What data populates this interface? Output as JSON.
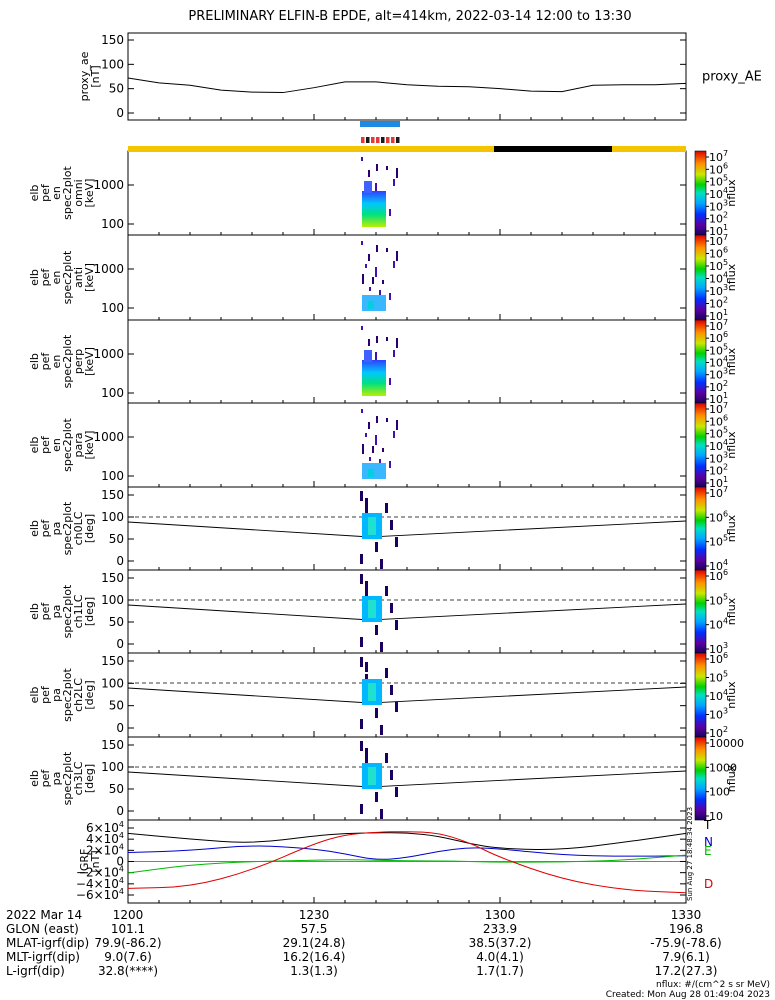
{
  "title": "PRELIMINARY ELFIN-B EPDE, alt=414km, 2022-03-14 12:00 to 13:30",
  "chart_data": [
    {
      "type": "line",
      "ylabel": [
        "proxy_ae",
        "[nT]"
      ],
      "legend": "proxy_AE",
      "ylim": [
        -10,
        160
      ],
      "y_ticks": [
        "150",
        "100",
        "50",
        "0"
      ],
      "x": [
        0,
        5,
        10,
        15,
        20,
        25,
        30,
        35,
        40,
        45,
        50,
        55,
        60,
        65,
        70,
        75,
        80,
        85,
        90
      ],
      "values": [
        72,
        62,
        57,
        47,
        43,
        42,
        52,
        64,
        64,
        58,
        55,
        54,
        50,
        45,
        44,
        57,
        58,
        58,
        61
      ]
    },
    {
      "type": "heatmap",
      "ylabel": [
        "elb",
        "pef",
        "en",
        "spec2plot",
        "omni",
        "[keV]"
      ],
      "y_ticks": [
        "1000",
        "100"
      ],
      "colorbar_ticks": [
        "10^7",
        "10^6",
        "10^5",
        "10^4",
        "10^3",
        "10^2",
        "10^1"
      ],
      "colorbar_label": "nflux"
    },
    {
      "type": "heatmap",
      "ylabel": [
        "elb",
        "pef",
        "en",
        "spec2plot",
        "anti",
        "[keV]"
      ],
      "y_ticks": [
        "1000",
        "100"
      ],
      "colorbar_ticks": [
        "10^7",
        "10^6",
        "10^5",
        "10^4",
        "10^3",
        "10^2",
        "10^1"
      ],
      "colorbar_label": "nflux"
    },
    {
      "type": "heatmap",
      "ylabel": [
        "elb",
        "pef",
        "en",
        "spec2plot",
        "perp",
        "[keV]"
      ],
      "y_ticks": [
        "1000",
        "100"
      ],
      "colorbar_ticks": [
        "10^7",
        "10^6",
        "10^5",
        "10^4",
        "10^3",
        "10^2",
        "10^1"
      ],
      "colorbar_label": "nflux"
    },
    {
      "type": "heatmap",
      "ylabel": [
        "elb",
        "pef",
        "en",
        "spec2plot",
        "para",
        "[keV]"
      ],
      "y_ticks": [
        "1000",
        "100"
      ],
      "colorbar_ticks": [
        "10^7",
        "10^6",
        "10^5",
        "10^4",
        "10^3",
        "10^2",
        "10^1"
      ],
      "colorbar_label": "nflux"
    },
    {
      "type": "heatmap",
      "ylabel": [
        "elb",
        "pef",
        "pa",
        "spec2plot",
        "ch0LC",
        "[deg]"
      ],
      "y_ticks": [
        "150",
        "100",
        "50",
        "0"
      ],
      "colorbar_ticks": [
        "10^7",
        "10^6",
        "10^5",
        "10^4"
      ],
      "colorbar_label": "nflux"
    },
    {
      "type": "heatmap",
      "ylabel": [
        "elb",
        "pef",
        "pa",
        "spec2plot",
        "ch1LC",
        "[deg]"
      ],
      "y_ticks": [
        "150",
        "100",
        "50",
        "0"
      ],
      "colorbar_ticks": [
        "10^6",
        "10^5",
        "10^4",
        "10^3"
      ],
      "colorbar_label": "nflux"
    },
    {
      "type": "heatmap",
      "ylabel": [
        "elb",
        "pef",
        "pa",
        "spec2plot",
        "ch2LC",
        "[deg]"
      ],
      "y_ticks": [
        "150",
        "100",
        "50",
        "0"
      ],
      "colorbar_ticks": [
        "10^6",
        "10^5",
        "10^4",
        "10^3",
        "10^2"
      ],
      "colorbar_label": "nflux"
    },
    {
      "type": "heatmap",
      "ylabel": [
        "elb",
        "pef",
        "pa",
        "spec2plot",
        "ch3LC",
        "[deg]"
      ],
      "y_ticks": [
        "150",
        "100",
        "50",
        "0"
      ],
      "colorbar_ticks": [
        "10000",
        "1000",
        "100",
        "10"
      ],
      "colorbar_label": "nflux"
    },
    {
      "type": "line",
      "ylabel": [
        "IGRF",
        "[nT]"
      ],
      "ylim": [
        -65000,
        65000
      ],
      "y_ticks": [
        "6×10^4",
        "4×10^4",
        "2×10^4",
        "0",
        "−2×10^4",
        "−4×10^4",
        "−6×10^4"
      ],
      "x": [
        0,
        10,
        20,
        30,
        35,
        40,
        45,
        50,
        55,
        60,
        70,
        80,
        90
      ],
      "series": [
        {
          "name": "T",
          "color": "#000000",
          "values": [
            44000,
            35000,
            28000,
            40000,
            44000,
            45000,
            45000,
            40000,
            28000,
            20000,
            18000,
            30000,
            44000
          ]
        },
        {
          "name": "N",
          "color": "#0000cc",
          "values": [
            14000,
            17000,
            26000,
            20000,
            12000,
            2000,
            6000,
            16000,
            22000,
            20000,
            10000,
            8000,
            9000
          ]
        },
        {
          "name": "E",
          "color": "#00bb00",
          "values": [
            -18000,
            -5000,
            0,
            2000,
            3000,
            2000,
            1000,
            1000,
            0,
            -1000,
            -1000,
            2000,
            10000
          ]
        },
        {
          "name": "D",
          "color": "#dd0000",
          "values": [
            -42000,
            -40000,
            -14000,
            28000,
            42000,
            46000,
            47000,
            45000,
            30000,
            6000,
            -28000,
            -45000,
            -49000
          ]
        }
      ],
      "side_text": "Sun Aug 27 18:48:34 2023"
    }
  ],
  "x_axis": {
    "row_labels": [
      "2022 Mar 14",
      "GLON (east)",
      "MLAT-igrf(dip)",
      "MLT-igrf(dip)",
      "L-igrf(dip)"
    ],
    "columns": [
      {
        "values": [
          "1200",
          "101.1",
          "79.9(-86.2)",
          "9.0(7.6)",
          "32.8(****)"
        ]
      },
      {
        "values": [
          "1230",
          "57.5",
          "29.1(24.8)",
          "16.2(16.4)",
          "1.3(1.3)"
        ]
      },
      {
        "values": [
          "1300",
          "233.9",
          "38.5(37.2)",
          "4.0(4.1)",
          "1.7(1.7)"
        ]
      },
      {
        "values": [
          "1330",
          "196.8",
          "-75.9(-78.6)",
          "7.9(6.1)",
          "17.2(27.3)"
        ]
      }
    ]
  },
  "footer": {
    "units": "nflux: #/(cm^2 s sr MeV)",
    "created": "Created: Mon Aug 28 01:49:04 2023"
  }
}
